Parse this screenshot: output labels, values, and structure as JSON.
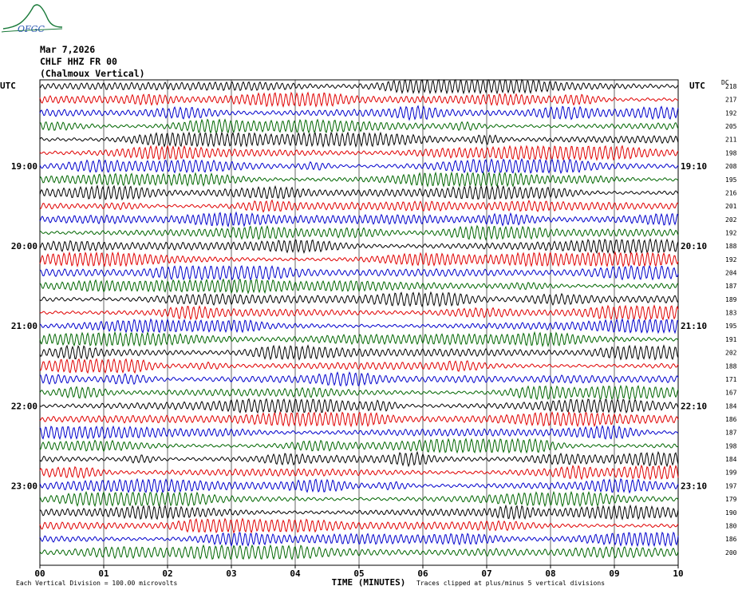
{
  "header": {
    "logo_text": "OFGC",
    "date": "Mar 7,2026",
    "station": "CHLF HHZ FR 00",
    "location": "(Chalmoux Vertical)"
  },
  "axes": {
    "left_unit": "UTC",
    "right_unit": "UTC",
    "dc_label": "DC",
    "x_title": "TIME (MINUTES)",
    "x_ticks": [
      "00",
      "01",
      "02",
      "03",
      "04",
      "05",
      "06",
      "07",
      "08",
      "09",
      "10"
    ]
  },
  "footer": {
    "scale_note": "Each Vertical Division =  100.00 microvolts",
    "clip_note": "Traces clipped at plus/minus 5 vertical divisions"
  },
  "colors": {
    "trace_cycle": [
      "#000000",
      "#e00000",
      "#0000cc",
      "#006600"
    ],
    "grid": "#000000"
  },
  "chart_data": {
    "type": "line",
    "description_type": "helicorder",
    "x_range_minutes": [
      0,
      10
    ],
    "left_hour_labels": [
      {
        "row": 6,
        "label": "19:00"
      },
      {
        "row": 12,
        "label": "20:00"
      },
      {
        "row": 18,
        "label": "21:00"
      },
      {
        "row": 24,
        "label": "22:00"
      },
      {
        "row": 30,
        "label": "23:00"
      }
    ],
    "right_hour_labels": [
      {
        "row": 6,
        "label": "19:10"
      },
      {
        "row": 12,
        "label": "20:10"
      },
      {
        "row": 18,
        "label": "21:10"
      },
      {
        "row": 24,
        "label": "22:10"
      },
      {
        "row": 30,
        "label": "23:10"
      }
    ],
    "dc_offsets": [
      218,
      217,
      192,
      205,
      211,
      198,
      208,
      195,
      216,
      201,
      202,
      192,
      188,
      192,
      204,
      187,
      189,
      183,
      195,
      191,
      202,
      188,
      171,
      167,
      184,
      186,
      187,
      198,
      184,
      199,
      197,
      179,
      190,
      180,
      186,
      200
    ],
    "trace_count": 36
  }
}
